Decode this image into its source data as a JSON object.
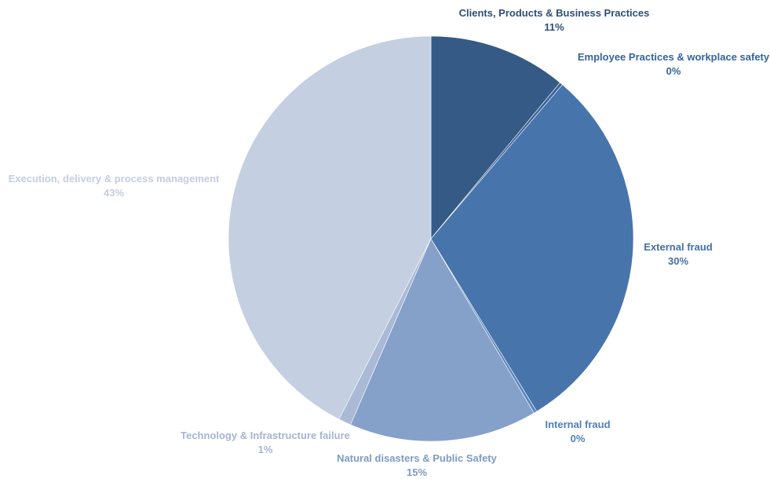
{
  "chart_data": {
    "type": "pie",
    "title": "",
    "start_angle_deg": 0,
    "direction": "clockwise",
    "slices": [
      {
        "label": "Clients, Products & Business Practices",
        "value": 11,
        "value_label": "11%",
        "color": "#355a85",
        "label_color": "#2d4e78"
      },
      {
        "label": "Employee Practices & workplace safety",
        "value": 0.25,
        "value_label": "0%",
        "color": "#3a6498",
        "label_color": "#36649a"
      },
      {
        "label": "External fraud",
        "value": 30,
        "value_label": "30%",
        "color": "#4774ab",
        "label_color": "#4170a8"
      },
      {
        "label": "Internal fraud",
        "value": 0.25,
        "value_label": "0%",
        "color": "#5b86bd",
        "label_color": "#4f7fb9"
      },
      {
        "label": "Natural disasters & Public Safety",
        "value": 15,
        "value_label": "15%",
        "color": "#86a1c9",
        "label_color": "#7f9ac4"
      },
      {
        "label": "Technology & Infrastructure failure",
        "value": 1,
        "value_label": "1%",
        "color": "#a9b9d6",
        "label_color": "#a6b4d0"
      },
      {
        "label": "Execution, delivery & process management",
        "value": 42.5,
        "value_label": "43%",
        "color": "#c5cfe2",
        "label_color": "#c4cde0"
      }
    ]
  }
}
